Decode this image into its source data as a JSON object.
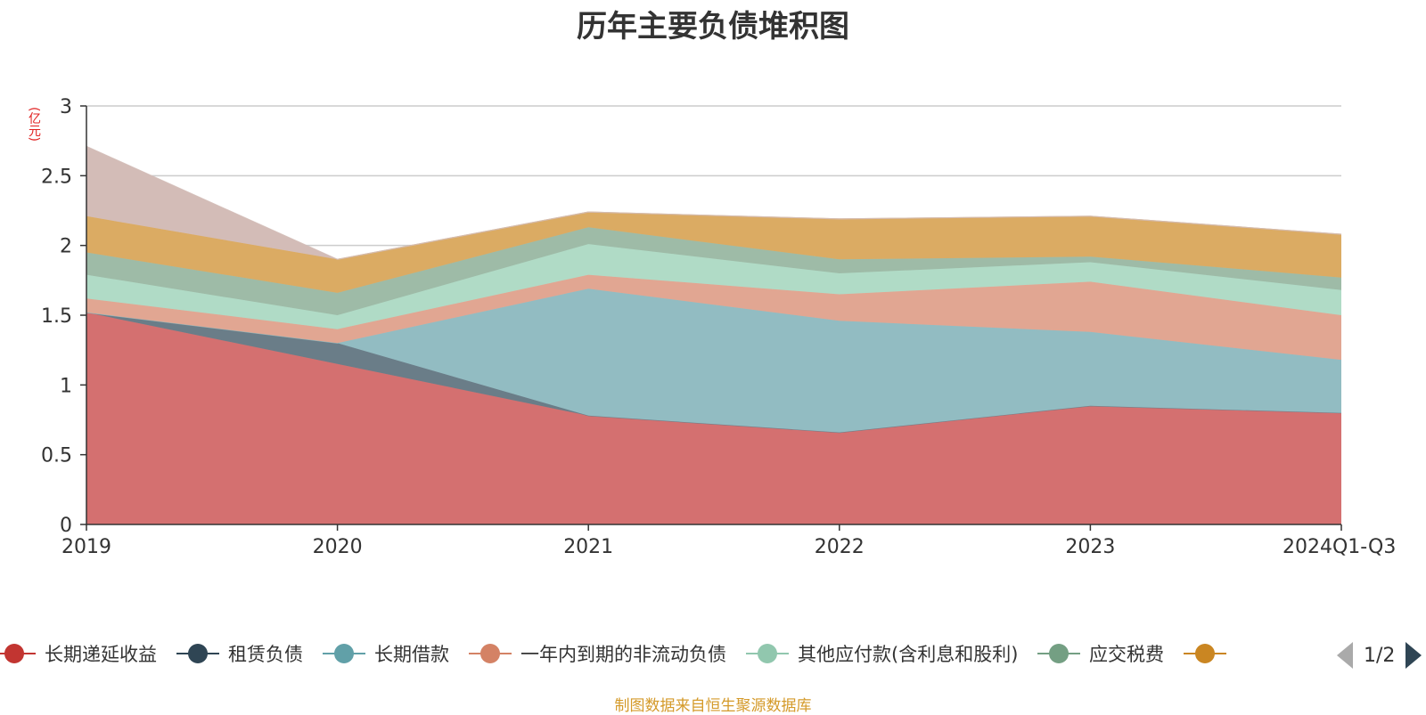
{
  "title": "历年主要负债堆积图",
  "unit_label": "(亿元)",
  "source_note": "制图数据来自恒生聚源数据库",
  "pager": {
    "text": "1/2"
  },
  "legend": [
    {
      "name": "长期递延收益",
      "color": "#c23531"
    },
    {
      "name": "租赁负债",
      "color": "#2f4554"
    },
    {
      "name": "长期借款",
      "color": "#61a0a8"
    },
    {
      "name": "一年内到期的非流动负债",
      "color": "#d48265"
    },
    {
      "name": "其他应付款(含利息和股利)",
      "color": "#91c7ae"
    },
    {
      "name": "应交税费",
      "color": "#749f83"
    },
    {
      "name": "",
      "color": "#ca8622"
    }
  ],
  "chart_data": {
    "type": "area",
    "stacked": true,
    "categories": [
      "2019",
      "2020",
      "2021",
      "2022",
      "2023",
      "2024Q1-Q3"
    ],
    "ylim": [
      0,
      3
    ],
    "yticks": [
      0,
      0.5,
      1,
      1.5,
      2,
      2.5,
      3
    ],
    "grid": true,
    "legend_position": "bottom",
    "series": [
      {
        "name": "长期递延收益",
        "color": "#d47070",
        "values": [
          1.52,
          1.15,
          0.78,
          0.66,
          0.85,
          0.8
        ]
      },
      {
        "name": "租赁负债",
        "color": "#6a7d88",
        "values": [
          0.0,
          0.15,
          0.0,
          0.0,
          0.0,
          0.0
        ]
      },
      {
        "name": "长期借款",
        "color": "#92bcc2",
        "values": [
          0.0,
          0.0,
          0.91,
          0.8,
          0.53,
          0.38
        ]
      },
      {
        "name": "一年内到期的非流动负债",
        "color": "#e1a692",
        "values": [
          0.1,
          0.1,
          0.1,
          0.19,
          0.36,
          0.32
        ]
      },
      {
        "name": "其他应付款(含利息和股利)",
        "color": "#b0dbc6",
        "values": [
          0.17,
          0.1,
          0.22,
          0.15,
          0.14,
          0.18
        ]
      },
      {
        "name": "应交税费",
        "color": "#9ebba7",
        "values": [
          0.16,
          0.16,
          0.12,
          0.1,
          0.04,
          0.09
        ]
      },
      {
        "name": "",
        "color": "#dbab63",
        "values": [
          0.26,
          0.24,
          0.11,
          0.29,
          0.29,
          0.31
        ]
      },
      {
        "name": "",
        "color": "#d3bcb7",
        "values": [
          0.5,
          0.0,
          0.0,
          0.0,
          0.0,
          0.0
        ]
      }
    ]
  }
}
